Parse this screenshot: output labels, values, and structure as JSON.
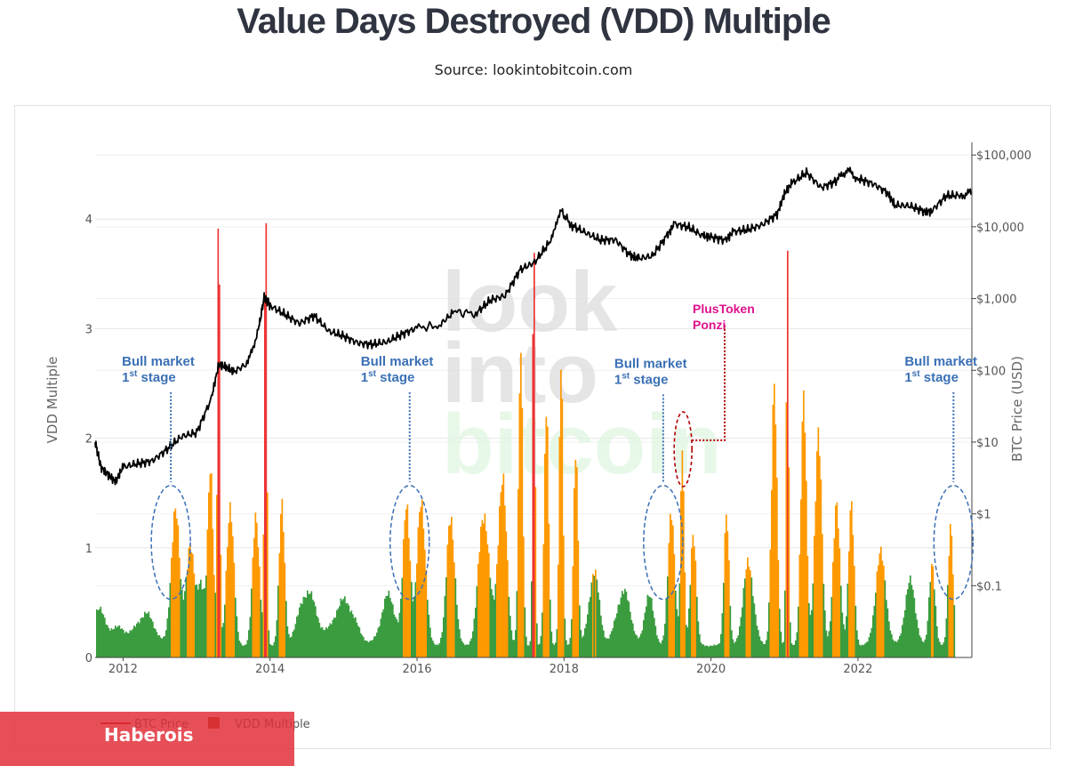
{
  "title": "Value Days Destroyed (VDD) Multiple",
  "subtitle": "Source: lookintobitcoin.com",
  "watermark": [
    "look",
    "into",
    "bitcoin"
  ],
  "badge": "Haberois",
  "colors": {
    "low": "#3a9c3f",
    "mid": "#ff9900",
    "high": "#ee3333",
    "price": "#000000",
    "annotation": "#3a70b5",
    "plustoken": "#e0118c",
    "grid": "#e6e6e6"
  },
  "chart_data": {
    "type": "bar+line",
    "title": "Value Days Destroyed (VDD) Multiple",
    "xlim": [
      2011.62,
      2023.55
    ],
    "x_ticks": [
      2012,
      2014,
      2016,
      2018,
      2020,
      2022
    ],
    "y_left": {
      "label": "VDD Multiple",
      "lim": [
        0,
        4.7
      ],
      "ticks": [
        0,
        1,
        2,
        3,
        4
      ]
    },
    "y_right": {
      "label": "BTC Price (USD)",
      "scale": "log",
      "lim": [
        0.01,
        150000
      ],
      "ticks": [
        0.1,
        1,
        10,
        100,
        1000,
        10000,
        100000
      ],
      "tick_labels": [
        "$0.1",
        "$1",
        "$10",
        "$100",
        "$1,000",
        "$10,000",
        "$100,000"
      ]
    },
    "thresholds": {
      "mid": 0.75,
      "high": 2.9
    },
    "legend": {
      "position": "bottom-left",
      "entries": [
        "BTC Price",
        "VDD Multiple"
      ]
    },
    "btc_price": {
      "name": "BTC Price",
      "x": [
        2011.62,
        2011.7,
        2011.8,
        2011.9,
        2012.0,
        2012.2,
        2012.4,
        2012.6,
        2012.8,
        2013.0,
        2013.2,
        2013.3,
        2013.4,
        2013.5,
        2013.7,
        2013.85,
        2013.92,
        2014.0,
        2014.2,
        2014.4,
        2014.6,
        2014.8,
        2015.0,
        2015.2,
        2015.4,
        2015.6,
        2015.8,
        2016.0,
        2016.3,
        2016.5,
        2016.8,
        2017.0,
        2017.2,
        2017.4,
        2017.6,
        2017.8,
        2017.96,
        2018.1,
        2018.3,
        2018.5,
        2018.7,
        2018.9,
        2019.0,
        2019.2,
        2019.4,
        2019.5,
        2019.7,
        2019.9,
        2020.0,
        2020.2,
        2020.3,
        2020.5,
        2020.7,
        2020.9,
        2021.0,
        2021.1,
        2021.3,
        2021.5,
        2021.7,
        2021.85,
        2022.0,
        2022.2,
        2022.4,
        2022.5,
        2022.7,
        2022.9,
        2023.0,
        2023.2,
        2023.4,
        2023.55
      ],
      "y": [
        10,
        4.5,
        3.5,
        2.8,
        4.5,
        5,
        5.5,
        8,
        12,
        13.5,
        40,
        120,
        110,
        95,
        125,
        400,
        1050,
        800,
        600,
        450,
        580,
        350,
        300,
        240,
        230,
        250,
        320,
        390,
        420,
        650,
        620,
        950,
        1100,
        2500,
        3200,
        6000,
        16500,
        10500,
        8200,
        6500,
        6600,
        4000,
        3600,
        3900,
        7500,
        11000,
        9800,
        7300,
        7200,
        6500,
        8500,
        9100,
        10700,
        15000,
        29000,
        40000,
        57000,
        35000,
        43000,
        62000,
        47000,
        40000,
        30000,
        20000,
        19500,
        16500,
        16500,
        27000,
        27500,
        30000
      ]
    },
    "vdd_multiple": {
      "name": "VDD Multiple",
      "peaks": [
        {
          "x": 2011.65,
          "y": 0.38,
          "w": 0.15
        },
        {
          "x": 2011.9,
          "y": 0.2,
          "w": 0.3
        },
        {
          "x": 2012.3,
          "y": 0.35,
          "w": 0.25
        },
        {
          "x": 2012.7,
          "y": 1.5,
          "w": 0.12
        },
        {
          "x": 2012.9,
          "y": 1.1,
          "w": 0.12
        },
        {
          "x": 2013.05,
          "y": 0.7,
          "w": 0.1
        },
        {
          "x": 2013.18,
          "y": 1.9,
          "w": 0.08
        },
        {
          "x": 2013.29,
          "y": 4.5,
          "w": 0.035
        },
        {
          "x": 2013.45,
          "y": 1.6,
          "w": 0.1
        },
        {
          "x": 2013.8,
          "y": 1.4,
          "w": 0.1
        },
        {
          "x": 2013.93,
          "y": 4.4,
          "w": 0.035
        },
        {
          "x": 2014.15,
          "y": 1.5,
          "w": 0.08
        },
        {
          "x": 2014.5,
          "y": 0.6,
          "w": 0.25
        },
        {
          "x": 2015.0,
          "y": 0.5,
          "w": 0.3
        },
        {
          "x": 2015.6,
          "y": 0.55,
          "w": 0.2
        },
        {
          "x": 2015.85,
          "y": 1.55,
          "w": 0.1
        },
        {
          "x": 2016.05,
          "y": 1.6,
          "w": 0.12
        },
        {
          "x": 2016.45,
          "y": 1.4,
          "w": 0.12
        },
        {
          "x": 2016.9,
          "y": 1.5,
          "w": 0.15
        },
        {
          "x": 2017.15,
          "y": 1.9,
          "w": 0.12
        },
        {
          "x": 2017.4,
          "y": 3.2,
          "w": 0.06
        },
        {
          "x": 2017.58,
          "y": 4.1,
          "w": 0.035
        },
        {
          "x": 2017.75,
          "y": 2.8,
          "w": 0.06
        },
        {
          "x": 2017.95,
          "y": 3.4,
          "w": 0.05
        },
        {
          "x": 2018.15,
          "y": 2.3,
          "w": 0.06
        },
        {
          "x": 2018.4,
          "y": 0.8,
          "w": 0.15
        },
        {
          "x": 2018.8,
          "y": 0.6,
          "w": 0.2
        },
        {
          "x": 2019.15,
          "y": 0.6,
          "w": 0.12
        },
        {
          "x": 2019.45,
          "y": 1.4,
          "w": 0.1
        },
        {
          "x": 2019.6,
          "y": 2.25,
          "w": 0.05
        },
        {
          "x": 2019.75,
          "y": 1.3,
          "w": 0.08
        },
        {
          "x": 2020.2,
          "y": 1.5,
          "w": 0.07
        },
        {
          "x": 2020.5,
          "y": 0.9,
          "w": 0.15
        },
        {
          "x": 2020.85,
          "y": 2.8,
          "w": 0.08
        },
        {
          "x": 2021.03,
          "y": 3.9,
          "w": 0.035
        },
        {
          "x": 2021.25,
          "y": 2.7,
          "w": 0.08
        },
        {
          "x": 2021.45,
          "y": 2.3,
          "w": 0.1
        },
        {
          "x": 2021.7,
          "y": 1.5,
          "w": 0.1
        },
        {
          "x": 2021.9,
          "y": 1.5,
          "w": 0.08
        },
        {
          "x": 2022.3,
          "y": 1.0,
          "w": 0.15
        },
        {
          "x": 2022.7,
          "y": 0.7,
          "w": 0.15
        },
        {
          "x": 2023.0,
          "y": 0.95,
          "w": 0.08
        },
        {
          "x": 2023.25,
          "y": 1.35,
          "w": 0.07
        },
        {
          "x": 2023.48,
          "y": 1.25,
          "w": 0.06
        }
      ]
    },
    "annotations": [
      {
        "lines": [
          "Bull market",
          "1",
          "st",
          " stage"
        ],
        "x": 2012.65,
        "label_y": 2.55
      },
      {
        "lines": [
          "Bull market",
          "1",
          "st",
          " stage"
        ],
        "x": 2015.9,
        "label_y": 2.55
      },
      {
        "lines": [
          "Bull market",
          "1",
          "st",
          " stage"
        ],
        "x": 2019.35,
        "label_y": 2.53
      },
      {
        "lines": [
          "Bull market",
          "1",
          "st",
          " stage"
        ],
        "x": 2023.3,
        "label_y": 2.55
      }
    ],
    "plustoken": {
      "lines": [
        "PlusToken",
        "Ponzi"
      ],
      "x": 2019.62,
      "y": 1.9
    }
  }
}
